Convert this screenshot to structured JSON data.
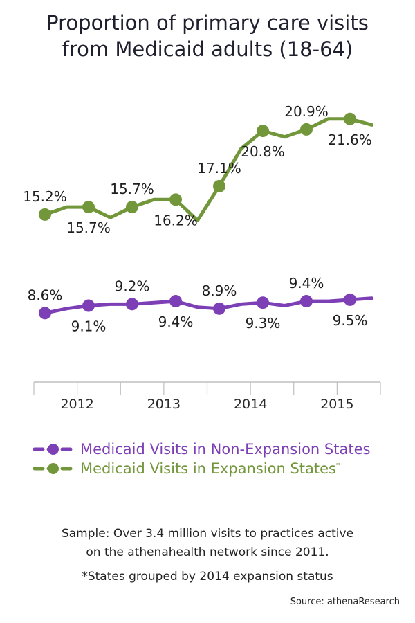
{
  "chart_data": {
    "type": "line",
    "title_lines": [
      "Proportion of primary care visits",
      "from Medicaid adults (18-64)"
    ],
    "x_ticks": [
      "2012",
      "2013",
      "2014",
      "2015"
    ],
    "ylim": [
      5,
      24
    ],
    "grid": false,
    "legend_position": "bottom",
    "series": [
      {
        "name": "Medicaid Visits in Expansion States",
        "name_mark": "*",
        "color": "#72963a",
        "points": [
          {
            "q": "2011 Q4",
            "value": 15.2,
            "label": "15.2%",
            "label_pos": "above"
          },
          {
            "q": "2012 Q1",
            "value": 15.7,
            "label": "",
            "label_pos": ""
          },
          {
            "q": "2012 Q2",
            "value": 15.7,
            "label": "15.7%",
            "label_pos": "below"
          },
          {
            "q": "2012 Q3",
            "value": 15.0,
            "label": "",
            "label_pos": ""
          },
          {
            "q": "2012 Q4",
            "value": 15.7,
            "label": "15.7%",
            "label_pos": "above"
          },
          {
            "q": "2013 Q1",
            "value": 16.2,
            "label": "",
            "label_pos": ""
          },
          {
            "q": "2013 Q2",
            "value": 16.2,
            "label": "16.2%",
            "label_pos": "below"
          },
          {
            "q": "2013 Q3",
            "value": 14.8,
            "label": "",
            "label_pos": ""
          },
          {
            "q": "2013 Q4",
            "value": 17.1,
            "label": "17.1%",
            "label_pos": "above"
          },
          {
            "q": "2014 Q1",
            "value": 19.6,
            "label": "",
            "label_pos": ""
          },
          {
            "q": "2014 Q2",
            "value": 20.8,
            "label": "20.8%",
            "label_pos": "below"
          },
          {
            "q": "2014 Q3",
            "value": 20.4,
            "label": "",
            "label_pos": ""
          },
          {
            "q": "2014 Q4",
            "value": 20.9,
            "label": "20.9%",
            "label_pos": "above"
          },
          {
            "q": "2015 Q1",
            "value": 21.6,
            "label": "",
            "label_pos": ""
          },
          {
            "q": "2015 Q2",
            "value": 21.6,
            "label": "21.6%",
            "label_pos": "below"
          },
          {
            "q": "2015 Q3",
            "value": 21.2,
            "label": "",
            "label_pos": ""
          }
        ]
      },
      {
        "name": "Medicaid Visits in Non-Expansion States",
        "name_mark": "",
        "color": "#7d3fb5",
        "points": [
          {
            "q": "2011 Q4",
            "value": 8.6,
            "label": "8.6%",
            "label_pos": "above"
          },
          {
            "q": "2012 Q1",
            "value": 8.9,
            "label": "",
            "label_pos": ""
          },
          {
            "q": "2012 Q2",
            "value": 9.1,
            "label": "9.1%",
            "label_pos": "below"
          },
          {
            "q": "2012 Q3",
            "value": 9.2,
            "label": "",
            "label_pos": ""
          },
          {
            "q": "2012 Q4",
            "value": 9.2,
            "label": "9.2%",
            "label_pos": "above"
          },
          {
            "q": "2013 Q1",
            "value": 9.3,
            "label": "",
            "label_pos": ""
          },
          {
            "q": "2013 Q2",
            "value": 9.4,
            "label": "9.4%",
            "label_pos": "below"
          },
          {
            "q": "2013 Q3",
            "value": 9.0,
            "label": "",
            "label_pos": ""
          },
          {
            "q": "2013 Q4",
            "value": 8.9,
            "label": "8.9%",
            "label_pos": "above"
          },
          {
            "q": "2014 Q1",
            "value": 9.2,
            "label": "",
            "label_pos": ""
          },
          {
            "q": "2014 Q2",
            "value": 9.3,
            "label": "9.3%",
            "label_pos": "below"
          },
          {
            "q": "2014 Q3",
            "value": 9.1,
            "label": "",
            "label_pos": ""
          },
          {
            "q": "2014 Q4",
            "value": 9.4,
            "label": "9.4%",
            "label_pos": "above"
          },
          {
            "q": "2015 Q1",
            "value": 9.4,
            "label": "",
            "label_pos": ""
          },
          {
            "q": "2015 Q2",
            "value": 9.5,
            "label": "9.5%",
            "label_pos": "below"
          },
          {
            "q": "2015 Q3",
            "value": 9.6,
            "label": "",
            "label_pos": ""
          }
        ]
      }
    ]
  },
  "legend": {
    "items": [
      {
        "label": "Medicaid Visits in Non-Expansion States",
        "mark": "",
        "color": "#7d3fb5"
      },
      {
        "label": "Medicaid Visits in Expansion States",
        "mark": "*",
        "color": "#72963a"
      }
    ]
  },
  "notes": {
    "sample_line1": "Sample: Over 3.4 million visits to practices active",
    "sample_line2": "on the athenahealth network since 2011.",
    "footnote": "*States grouped by 2014 expansion status"
  },
  "source": "Source: athenaResearch"
}
